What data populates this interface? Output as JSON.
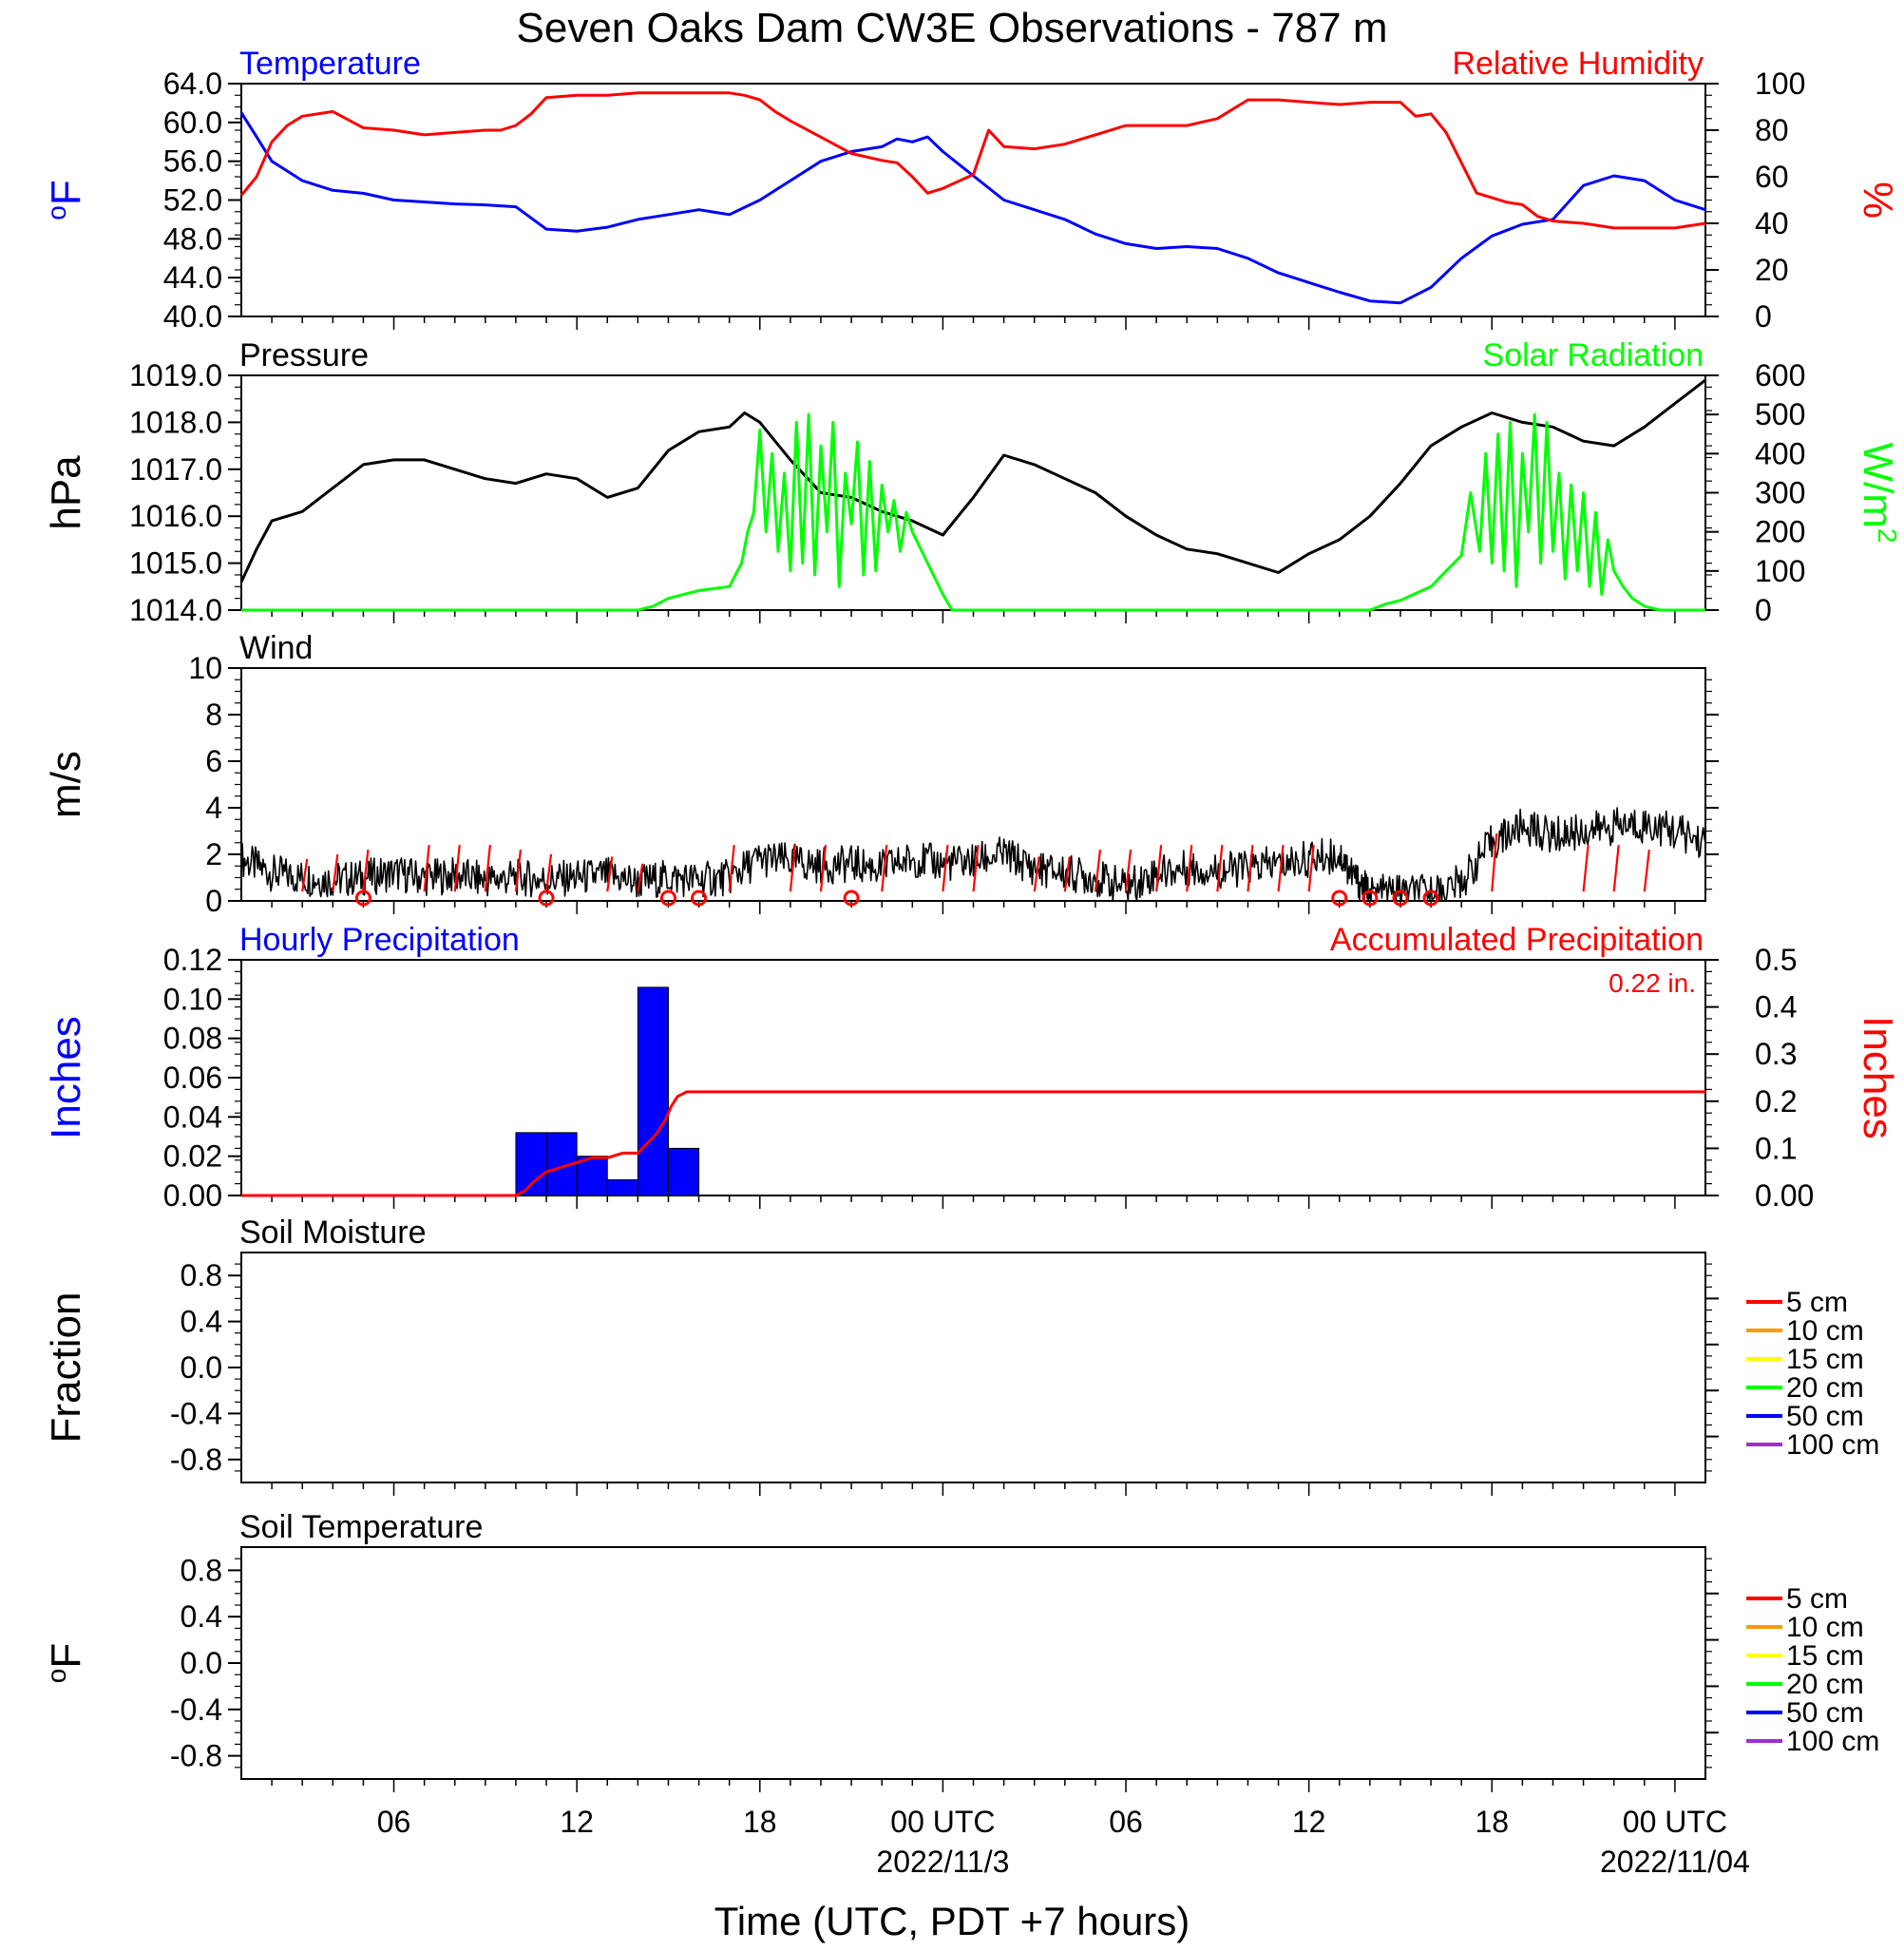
{
  "title": "Seven Oaks Dam CW3E Observations - 787 m",
  "colors": {
    "temperature": "#0000ff",
    "humidity": "#ff0000",
    "pressure": "#000000",
    "solar": "#00ff00",
    "wind": "#000000",
    "wind_barb": "#ff0000",
    "hourly_precip": "#0000ff",
    "accum_precip": "#ff0000"
  },
  "x_axis": {
    "label": "Time (UTC, PDT +7 hours)",
    "range_hours": [
      0,
      48
    ],
    "ticks": [
      {
        "h": 5,
        "label": "06"
      },
      {
        "h": 11,
        "label": "12"
      },
      {
        "h": 17,
        "label": "18"
      },
      {
        "h": 23,
        "label": "00 UTC"
      },
      {
        "h": 29,
        "label": "06"
      },
      {
        "h": 35,
        "label": "12"
      },
      {
        "h": 41,
        "label": "18"
      },
      {
        "h": 47,
        "label": "00 UTC"
      }
    ],
    "dates": [
      {
        "h": 23,
        "label": "2022/11/3"
      },
      {
        "h": 47,
        "label": "2022/11/04"
      }
    ]
  },
  "chart_data": [
    {
      "type": "line",
      "panel": "temperature-humidity",
      "left_title": "Temperature",
      "right_title": "Relative Humidity",
      "left_unit": "oF",
      "right_unit": "%",
      "ylim_left": [
        40,
        64
      ],
      "yticks_left": [
        "40.0",
        "44.0",
        "48.0",
        "52.0",
        "56.0",
        "60.0",
        "64.0"
      ],
      "ylim_right": [
        0,
        100
      ],
      "yticks_right": [
        "0",
        "20",
        "40",
        "60",
        "80",
        "100"
      ],
      "series": [
        {
          "name": "Temperature",
          "axis": "left",
          "x": [
            0,
            0.5,
            1,
            1.5,
            2,
            3,
            4,
            5,
            6,
            7,
            8,
            9,
            10,
            11,
            12,
            13,
            14,
            15,
            16,
            17,
            18,
            19,
            20,
            21,
            21.5,
            22,
            22.5,
            23,
            24,
            25,
            26,
            27,
            28,
            29,
            30,
            31,
            32,
            33,
            34,
            35,
            36,
            37,
            38,
            39,
            40,
            41,
            42,
            43,
            44,
            45,
            46,
            47,
            48
          ],
          "y": [
            61,
            58.5,
            56,
            55,
            54,
            53,
            52.7,
            52,
            51.8,
            51.6,
            51.5,
            51.3,
            49,
            48.8,
            49.2,
            50,
            50.5,
            51,
            50.5,
            52,
            54,
            56,
            57,
            57.5,
            58.3,
            58,
            58.5,
            57,
            54.5,
            52,
            51,
            50,
            48.5,
            47.5,
            47,
            47.2,
            47,
            46,
            44.5,
            43.5,
            42.5,
            41.6,
            41.4,
            43,
            46,
            48.3,
            49.5,
            50,
            53.5,
            54.5,
            54,
            52,
            51
          ]
        },
        {
          "name": "Relative Humidity",
          "axis": "right",
          "x": [
            0,
            0.5,
            1,
            1.5,
            2,
            3,
            4,
            5,
            6,
            7,
            8,
            8.5,
            9,
            9.5,
            10,
            11,
            12,
            13,
            14,
            15,
            16,
            16.5,
            17,
            17.5,
            18,
            19,
            20,
            21,
            21.5,
            22,
            22.5,
            23,
            24,
            24.5,
            25,
            26,
            27,
            28,
            29,
            30,
            31,
            32,
            33,
            34,
            35,
            36,
            37,
            38,
            38.5,
            39,
            39.5,
            40,
            40.5,
            41,
            41.5,
            42,
            42.5,
            43,
            44,
            45,
            46,
            47,
            48
          ],
          "y": [
            52,
            60,
            75,
            82,
            86,
            88,
            81,
            80,
            78,
            79,
            80,
            80,
            82,
            87,
            94,
            95,
            95,
            96,
            96,
            96,
            96,
            95,
            93,
            88,
            84,
            77,
            70,
            67,
            66,
            60,
            53,
            55,
            61,
            80,
            73,
            72,
            74,
            78,
            82,
            82,
            82,
            85,
            93,
            93,
            92,
            91,
            92,
            92,
            86,
            87,
            79,
            66,
            53,
            51,
            49,
            48,
            43,
            41,
            40,
            38,
            38,
            38,
            40
          ]
        }
      ]
    },
    {
      "type": "line",
      "panel": "pressure-solar",
      "left_title": "Pressure",
      "right_title": "Solar Radiation",
      "left_unit": "hPa",
      "right_unit": "W/m",
      "right_unit_sup": "2",
      "ylim_left": [
        1014,
        1019
      ],
      "yticks_left": [
        "1014.0",
        "1015.0",
        "1016.0",
        "1017.0",
        "1018.0",
        "1019.0"
      ],
      "ylim_right": [
        0,
        600
      ],
      "yticks_right": [
        "0",
        "100",
        "200",
        "300",
        "400",
        "500",
        "600"
      ],
      "series": [
        {
          "name": "Pressure",
          "axis": "left",
          "x": [
            0,
            0.5,
            1,
            1.5,
            2,
            3,
            4,
            5,
            6,
            7,
            8,
            9,
            10,
            11,
            12,
            13,
            14,
            15,
            16,
            16.5,
            17,
            17.5,
            18,
            19,
            20,
            21,
            22,
            23,
            24,
            25,
            26,
            27,
            28,
            29,
            30,
            31,
            32,
            33,
            34,
            35,
            36,
            37,
            38,
            39,
            40,
            41,
            42,
            43,
            44,
            45,
            46,
            47,
            48
          ],
          "y": [
            1014.6,
            1015.3,
            1015.9,
            1016.0,
            1016.1,
            1016.6,
            1017.1,
            1017.2,
            1017.2,
            1017.0,
            1016.8,
            1016.7,
            1016.9,
            1016.8,
            1016.4,
            1016.6,
            1017.4,
            1017.8,
            1017.9,
            1018.2,
            1018.0,
            1017.6,
            1017.2,
            1016.5,
            1016.4,
            1016.1,
            1015.9,
            1015.6,
            1016.4,
            1017.3,
            1017.1,
            1016.8,
            1016.5,
            1016.0,
            1015.6,
            1015.3,
            1015.2,
            1015.0,
            1014.8,
            1015.2,
            1015.5,
            1016.0,
            1016.7,
            1017.5,
            1017.9,
            1018.2,
            1018.0,
            1017.9,
            1017.6,
            1017.5,
            1017.9,
            1018.4,
            1018.9
          ]
        },
        {
          "name": "Solar Radiation",
          "axis": "right",
          "x": [
            0,
            13,
            13.5,
            14,
            15,
            16,
            16.4,
            16.6,
            16.8,
            17,
            17.2,
            17.4,
            17.6,
            17.8,
            18,
            18.2,
            18.4,
            18.6,
            18.8,
            19,
            19.2,
            19.4,
            19.6,
            19.8,
            20,
            20.2,
            20.4,
            20.6,
            20.8,
            21,
            21.2,
            21.4,
            21.6,
            21.8,
            22,
            22.5,
            23,
            23.3,
            24,
            37,
            37.5,
            38,
            39,
            39.5,
            40,
            40.3,
            40.6,
            40.8,
            41,
            41.2,
            41.4,
            41.6,
            41.8,
            42,
            42.2,
            42.4,
            42.6,
            42.8,
            43,
            43.2,
            43.4,
            43.6,
            43.8,
            44,
            44.2,
            44.4,
            44.6,
            44.8,
            45,
            45.3,
            45.6,
            46,
            46.5,
            47,
            48
          ],
          "y": [
            0,
            0,
            10,
            30,
            50,
            60,
            120,
            200,
            250,
            460,
            200,
            400,
            150,
            350,
            100,
            480,
            120,
            500,
            90,
            420,
            200,
            480,
            60,
            350,
            220,
            430,
            90,
            380,
            100,
            320,
            200,
            280,
            150,
            250,
            200,
            120,
            40,
            0,
            0,
            0,
            15,
            25,
            60,
            100,
            140,
            300,
            150,
            400,
            120,
            450,
            100,
            480,
            60,
            400,
            200,
            500,
            120,
            480,
            150,
            350,
            80,
            320,
            100,
            300,
            60,
            250,
            40,
            180,
            100,
            60,
            30,
            10,
            0,
            0,
            0
          ]
        }
      ]
    },
    {
      "type": "line",
      "panel": "wind",
      "left_title": "Wind",
      "left_unit": "m/s",
      "ylim_left": [
        0,
        10
      ],
      "yticks_left": [
        "0",
        "2",
        "4",
        "6",
        "8",
        "10"
      ],
      "series": [
        {
          "name": "Wind",
          "axis": "left",
          "x": [
            0,
            1,
            2,
            3,
            4,
            5,
            6,
            7,
            8,
            9,
            10,
            11,
            12,
            13,
            14,
            15,
            16,
            17,
            18,
            19,
            20,
            21,
            22,
            23,
            24,
            25,
            26,
            27,
            28,
            29,
            30,
            31,
            32,
            33,
            34,
            35,
            36,
            36.5,
            37,
            38,
            39,
            40,
            41,
            42,
            43,
            44,
            45,
            46,
            47,
            48
          ],
          "y": [
            1.8,
            1.2,
            1.0,
            0.9,
            1.0,
            1.2,
            1.0,
            1.1,
            0.9,
            1.0,
            0.9,
            1.0,
            1.1,
            0.8,
            1.0,
            0.9,
            1.0,
            1.8,
            1.7,
            1.5,
            1.6,
            1.4,
            1.8,
            1.6,
            1.7,
            2.0,
            1.4,
            1.2,
            1.0,
            0.6,
            1.2,
            1.4,
            1.3,
            1.4,
            1.6,
            1.8,
            2.0,
            1.0,
            0.3,
            0.4,
            0.3,
            0.8,
            2.5,
            3.2,
            2.8,
            3.0,
            3.2,
            3.3,
            3.0,
            2.5
          ],
          "noise": 0.8
        }
      ],
      "barbs": [
        {
          "x": 2,
          "len": 1.4
        },
        {
          "x": 3,
          "len": 1.6
        },
        {
          "x": 4,
          "len": 1.8
        },
        {
          "x": 6,
          "len": 2.0
        },
        {
          "x": 7,
          "len": 2.0
        },
        {
          "x": 8,
          "len": 2.0
        },
        {
          "x": 9,
          "len": 1.8
        },
        {
          "x": 10,
          "len": 1.6
        },
        {
          "x": 12,
          "len": 1.5
        },
        {
          "x": 13,
          "len": 1.2
        },
        {
          "x": 16,
          "len": 2.0
        },
        {
          "x": 18,
          "len": 2.0
        },
        {
          "x": 19,
          "len": 2.0
        },
        {
          "x": 21,
          "len": 2.0
        },
        {
          "x": 23,
          "len": 2.0
        },
        {
          "x": 24,
          "len": 2.0
        },
        {
          "x": 26,
          "len": 1.5
        },
        {
          "x": 27,
          "len": 1.5
        },
        {
          "x": 28,
          "len": 1.8
        },
        {
          "x": 29,
          "len": 1.8
        },
        {
          "x": 30,
          "len": 2.0
        },
        {
          "x": 31,
          "len": 2.0
        },
        {
          "x": 32,
          "len": 2.0
        },
        {
          "x": 33,
          "len": 2.0
        },
        {
          "x": 34,
          "len": 2.0
        },
        {
          "x": 35,
          "len": 2.0
        },
        {
          "x": 41,
          "len": 2.5
        },
        {
          "x": 44,
          "len": 2.0
        },
        {
          "x": 45,
          "len": 2.0
        },
        {
          "x": 46,
          "len": 1.8
        }
      ],
      "calm_markers": [
        4,
        10,
        14,
        15,
        20,
        36,
        37,
        38,
        39
      ]
    },
    {
      "type": "bar",
      "panel": "precipitation",
      "left_title": "Hourly Precipitation",
      "right_title": "Accumulated Precipitation",
      "annotation": "0.22 in.",
      "left_unit": "Inches",
      "right_unit": "Inches",
      "ylim_left": [
        0,
        0.12
      ],
      "yticks_left": [
        "0.00",
        "0.02",
        "0.04",
        "0.06",
        "0.08",
        "0.10",
        "0.12"
      ],
      "ylim_right": [
        0,
        0.5
      ],
      "yticks_right": [
        "0.00",
        "0.1",
        "0.2",
        "0.3",
        "0.4",
        "0.5"
      ],
      "bars": [
        {
          "x0": 9,
          "x1": 10,
          "value": 0.032
        },
        {
          "x0": 10,
          "x1": 11,
          "value": 0.032
        },
        {
          "x0": 11,
          "x1": 12,
          "value": 0.02
        },
        {
          "x0": 12,
          "x1": 13,
          "value": 0.008
        },
        {
          "x0": 13,
          "x1": 14,
          "value": 0.106
        },
        {
          "x0": 14,
          "x1": 15,
          "value": 0.024
        }
      ],
      "series": [
        {
          "name": "Accumulated Precipitation",
          "axis": "right",
          "x": [
            0,
            9,
            9.3,
            9.6,
            10,
            10.5,
            11,
            11.5,
            12,
            12.5,
            13,
            13.3,
            13.6,
            13.9,
            14.1,
            14.3,
            14.6,
            15,
            48
          ],
          "y": [
            0,
            0,
            0.01,
            0.03,
            0.05,
            0.06,
            0.07,
            0.08,
            0.08,
            0.09,
            0.09,
            0.11,
            0.13,
            0.16,
            0.19,
            0.21,
            0.22,
            0.22,
            0.22
          ]
        }
      ]
    },
    {
      "type": "line",
      "panel": "soil-moisture",
      "left_title": "Soil Moisture",
      "left_unit": "Fraction",
      "ylim_left": [
        -1,
        1
      ],
      "yticks_left": [
        "-0.8",
        "-0.4",
        "0.0",
        "0.4",
        "0.8"
      ],
      "legend": [
        {
          "label": "5 cm",
          "color": "#ff0000"
        },
        {
          "label": "10 cm",
          "color": "#ff9900"
        },
        {
          "label": "15 cm",
          "color": "#ffff00"
        },
        {
          "label": "20 cm",
          "color": "#00ff00"
        },
        {
          "label": "50 cm",
          "color": "#0000ff"
        },
        {
          "label": "100 cm",
          "color": "#9933cc"
        }
      ]
    },
    {
      "type": "line",
      "panel": "soil-temperature",
      "left_title": "Soil Temperature",
      "left_unit": "oF",
      "ylim_left": [
        -1,
        1
      ],
      "yticks_left": [
        "-0.8",
        "-0.4",
        "0.0",
        "0.4",
        "0.8"
      ],
      "legend": [
        {
          "label": "5 cm",
          "color": "#ff0000"
        },
        {
          "label": "10 cm",
          "color": "#ff9900"
        },
        {
          "label": "15 cm",
          "color": "#ffff00"
        },
        {
          "label": "20 cm",
          "color": "#00ff00"
        },
        {
          "label": "50 cm",
          "color": "#0000ff"
        },
        {
          "label": "100 cm",
          "color": "#9933cc"
        }
      ]
    }
  ]
}
